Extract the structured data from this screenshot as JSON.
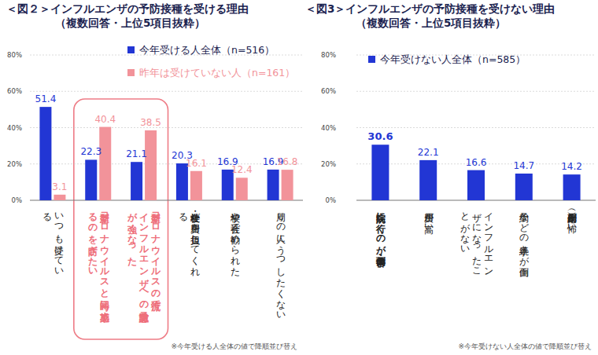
{
  "chart_data": [
    {
      "type": "bar",
      "title": "＜図２＞インフルエンザの予防接種を受ける理由",
      "subtitle": "（複数回答・上位5項目抜粋）",
      "note": "※今年受ける人全体の値で降順並び替え",
      "categories": [
        "いつも受けている",
        "新型コロナウイルスと同時に感染するのを防ぎたい",
        "新型コロナウイルスの流行でインフルエンザへの予防意識が強くなった",
        "学校・会社が費用を負担してくれる",
        "学校や会社で勧められた",
        "周りの人にうつしたくない"
      ],
      "series": [
        {
          "name": "今年受ける人全体（n=516）",
          "color": "#2236d4",
          "values": [
            51.4,
            22.3,
            21.1,
            20.3,
            16.9,
            16.9
          ]
        },
        {
          "name": "昨年は受けていない人（n=161）",
          "color": "#f2939a",
          "values": [
            3.1,
            40.4,
            38.5,
            16.1,
            12.4,
            16.8
          ]
        }
      ],
      "ylim": [
        0,
        80
      ],
      "yticks": [
        {
          "value": 0,
          "label": "0%"
        },
        {
          "value": 20,
          "label": "20%"
        },
        {
          "value": 40,
          "label": "40%"
        },
        {
          "value": 60,
          "label": "60%"
        },
        {
          "value": 80,
          "label": "80%"
        }
      ],
      "grid": true,
      "data_labels": true,
      "legend": "top"
    },
    {
      "type": "bar",
      "title": "＜図3＞インフルエンザの予防接種を受けない理由",
      "subtitle": "（複数回答・上位5項目抜粋）",
      "note": "※今年受けない人全体の値で降順並び替え",
      "categories": [
        "病院に行くのが面倒・苦手",
        "費用が高い",
        "インフルエンザになったことがない",
        "予約などの手続きが面倒",
        "副作用（副反応）が怖い"
      ],
      "series": [
        {
          "name": "今年受けない人全体（n=585）",
          "color": "#2236d4",
          "values": [
            30.6,
            22.1,
            16.6,
            14.7,
            14.2
          ]
        }
      ],
      "ylim": [
        0,
        80
      ],
      "yticks": [
        {
          "value": 0,
          "label": "0%"
        },
        {
          "value": 20,
          "label": "20%"
        },
        {
          "value": 40,
          "label": "40%"
        },
        {
          "value": 60,
          "label": "60%"
        },
        {
          "value": 80,
          "label": "80%"
        }
      ],
      "grid": true,
      "data_labels": true,
      "legend": "top"
    }
  ]
}
